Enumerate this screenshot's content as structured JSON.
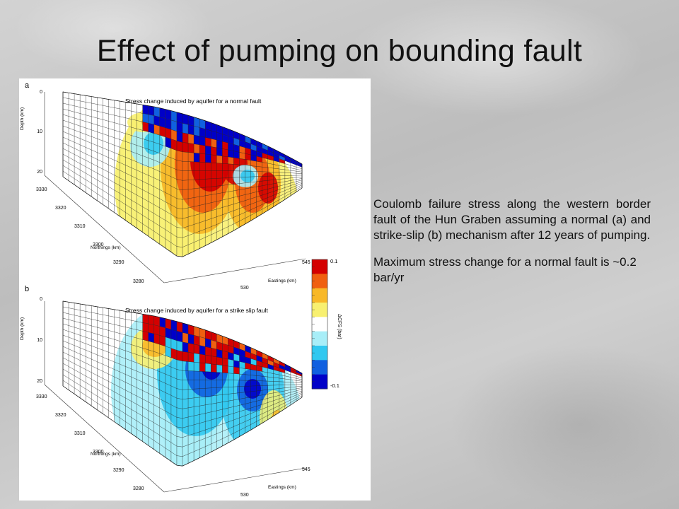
{
  "slide": {
    "title": "Effect of pumping on bounding fault",
    "caption_paragraph_1": "Coulomb failure stress along the western border fault of the Hun Graben assuming a normal (a) and strike-slip (b) mechanism after 12 years of pumping.",
    "caption_paragraph_2": "Maximum stress change for a normal fault is ~0.2 bar/yr"
  },
  "figure": {
    "panels": [
      {
        "letter": "a",
        "title": "Stress change induced by aquifer for a normal fault",
        "depth_label": "Depth (km)",
        "depth_ticks": [
          "0",
          "10",
          "20"
        ],
        "northing_label": "Northings (km)",
        "northing_ticks": [
          "3330",
          "3320",
          "3310",
          "3300",
          "3290",
          "3280"
        ],
        "easting_label": "Eastings (km)",
        "easting_ticks": [
          "545",
          "530"
        ]
      },
      {
        "letter": "b",
        "title": "Stress change induced by aquifer for a strike slip fault",
        "depth_label": "Depth (km)",
        "depth_ticks": [
          "0",
          "10",
          "20"
        ],
        "northing_label": "Northings (km)",
        "northing_ticks": [
          "3330",
          "3320",
          "3310",
          "3300",
          "3290",
          "3280"
        ],
        "easting_label": "Eastings (km)",
        "easting_ticks": [
          "545",
          "530"
        ]
      }
    ],
    "colorbar": {
      "label": "ΔCFS (bar)",
      "max_label": "0.1",
      "min_label": "-0.1",
      "colors": [
        "#d40000",
        "#f06010",
        "#f8b828",
        "#f8f070",
        "#ffffff",
        "#a8eef8",
        "#30c8f0",
        "#1060e0",
        "#0000c8"
      ]
    }
  }
}
